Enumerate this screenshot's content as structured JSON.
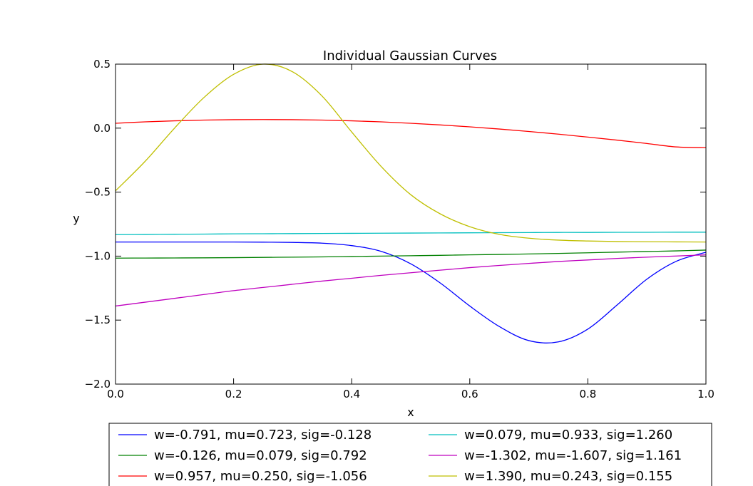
{
  "chart_data": {
    "type": "line",
    "title": "Individual Gaussian Curves",
    "xlabel": "x",
    "ylabel": "y",
    "xlim": [
      0.0,
      1.0
    ],
    "ylim": [
      -2.0,
      0.5
    ],
    "xticks": [
      "0.0",
      "0.2",
      "0.4",
      "0.6",
      "0.8",
      "1.0"
    ],
    "yticks": [
      "−2.0",
      "−1.5",
      "−1.0",
      "−0.5",
      "0.0",
      "0.5"
    ],
    "grid": false,
    "legend_position": "bottom (below plot, two columns)",
    "x": [
      0.0,
      0.05,
      0.1,
      0.15,
      0.2,
      0.25,
      0.3,
      0.35,
      0.4,
      0.45,
      0.5,
      0.55,
      0.6,
      0.65,
      0.7,
      0.75,
      0.8,
      0.85,
      0.9,
      0.95,
      1.0
    ],
    "series": [
      {
        "name": "w=-0.791, mu=0.723, sig=-0.128",
        "color": "#0000ff",
        "values": [
          -0.89,
          -0.89,
          -0.89,
          -0.89,
          -0.89,
          -0.891,
          -0.893,
          -0.899,
          -0.918,
          -0.963,
          -1.06,
          -1.21,
          -1.39,
          -1.55,
          -1.66,
          -1.67,
          -1.57,
          -1.38,
          -1.18,
          -1.04,
          -0.97
        ]
      },
      {
        "name": "w=-0.126, mu=0.079, sig=0.792",
        "color": "#008000",
        "values": [
          -1.016,
          -1.015,
          -1.0145,
          -1.0135,
          -1.012,
          -1.01,
          -1.008,
          -1.006,
          -1.003,
          -1.0,
          -0.997,
          -0.994,
          -0.99,
          -0.987,
          -0.983,
          -0.979,
          -0.974,
          -0.969,
          -0.964,
          -0.959,
          -0.953
        ]
      },
      {
        "name": "w=0.957, mu=0.250, sig=-1.056",
        "color": "#ff0000",
        "values": [
          0.038,
          0.049,
          0.057,
          0.063,
          0.066,
          0.067,
          0.066,
          0.063,
          0.057,
          0.049,
          0.038,
          0.025,
          0.01,
          -0.007,
          -0.026,
          -0.047,
          -0.07,
          -0.094,
          -0.12,
          -0.147,
          -0.153
        ]
      },
      {
        "name": "w=0.079, mu=0.933, sig=1.260",
        "color": "#00bfbf",
        "values": [
          -0.832,
          -0.831,
          -0.829,
          -0.828,
          -0.826,
          -0.825,
          -0.824,
          -0.823,
          -0.822,
          -0.821,
          -0.82,
          -0.819,
          -0.818,
          -0.817,
          -0.816,
          -0.815,
          -0.815,
          -0.814,
          -0.814,
          -0.813,
          -0.813
        ]
      },
      {
        "name": "w=-1.302, mu=-1.607, sig=1.161",
        "color": "#bf00bf",
        "values": [
          -1.39,
          -1.36,
          -1.33,
          -1.3,
          -1.27,
          -1.245,
          -1.22,
          -1.195,
          -1.173,
          -1.15,
          -1.13,
          -1.11,
          -1.09,
          -1.073,
          -1.057,
          -1.042,
          -1.03,
          -1.018,
          -1.008,
          -0.999,
          -0.99
        ]
      },
      {
        "name": "w=1.390, mu=0.243, sig=0.155",
        "color": "#bfbf00",
        "values": [
          -0.49,
          -0.26,
          0.0,
          0.24,
          0.42,
          0.5,
          0.44,
          0.25,
          -0.03,
          -0.3,
          -0.52,
          -0.67,
          -0.77,
          -0.83,
          -0.86,
          -0.875,
          -0.882,
          -0.886,
          -0.888,
          -0.889,
          -0.89
        ]
      }
    ]
  }
}
